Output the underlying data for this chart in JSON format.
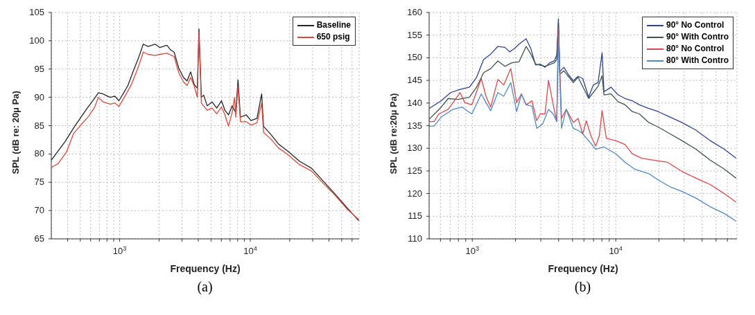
{
  "chart_data": [
    {
      "type": "line",
      "xlabel": "Frequency (Hz)",
      "ylabel": "SPL (dB re: 20μ Pa)",
      "log": "x",
      "grid": true,
      "legend": "top right",
      "marker": "none",
      "line_style": "solid",
      "annotations": [
        "(a)"
      ],
      "xlim": [
        300,
        68000
      ],
      "ylim": [
        65,
        105
      ],
      "yticks": [
        65,
        70,
        75,
        80,
        85,
        90,
        95,
        100,
        105
      ],
      "xticks": [
        {
          "value": 400,
          "label": null
        },
        {
          "value": 500,
          "label": null
        },
        {
          "value": 600,
          "label": null
        },
        {
          "value": 700,
          "label": null
        },
        {
          "value": 800,
          "label": null
        },
        {
          "value": 900,
          "label": null
        },
        {
          "value": 1000,
          "label": "10$^{3}$"
        },
        {
          "value": 2000,
          "label": null
        },
        {
          "value": 3000,
          "label": null
        },
        {
          "value": 4000,
          "label": null
        },
        {
          "value": 5000,
          "label": null
        },
        {
          "value": 6000,
          "label": null
        },
        {
          "value": 7000,
          "label": null
        },
        {
          "value": 8000,
          "label": null
        },
        {
          "value": 9000,
          "label": null
        },
        {
          "value": 10000,
          "label": "10$^{4}$"
        },
        {
          "value": 20000,
          "label": null
        },
        {
          "value": 30000,
          "label": null
        },
        {
          "value": 40000,
          "label": null
        },
        {
          "value": 50000,
          "label": null
        },
        {
          "value": 60000,
          "label": null
        }
      ],
      "series": [
        {
          "name": "Baseline",
          "color": "#222222",
          "x": [
            300,
            383,
            453,
            557,
            632,
            687,
            747,
            778,
            847,
            920,
            988,
            1087,
            1157,
            1284,
            1396,
            1517,
            1649,
            1870,
            2032,
            2302,
            2449,
            2611,
            2839,
            3085,
            3283,
            3495,
            3721,
            3929,
            4046,
            4219,
            4397,
            4677,
            5091,
            5534,
            6015,
            6398,
            6809,
            7255,
            7730,
            8054,
            8397,
            9311,
            10120,
            11250,
            12210,
            12620,
            14420,
            16370,
            19330,
            23830,
            29330,
            36120,
            44540,
            54820,
            67640
          ],
          "values": [
            78.9,
            82.2,
            84.9,
            87.9,
            89.6,
            90.8,
            90.6,
            90.4,
            90.0,
            90.2,
            89.4,
            91.0,
            92.1,
            94.9,
            97.0,
            99.4,
            99.0,
            99.4,
            98.8,
            99.2,
            98.4,
            98.0,
            95.1,
            93.5,
            92.9,
            94.5,
            92.3,
            91.6,
            102.1,
            90.0,
            90.4,
            88.5,
            89.2,
            88.1,
            89.4,
            87.7,
            86.9,
            88.5,
            87.3,
            93.1,
            86.5,
            86.9,
            85.9,
            86.3,
            90.6,
            84.9,
            83.4,
            81.8,
            80.5,
            78.7,
            77.5,
            75.2,
            72.9,
            70.5,
            68.2
          ]
        },
        {
          "name": "650 psig",
          "color": "#d9483b",
          "x": [
            300,
            338,
            391,
            444,
            513,
            581,
            645,
            687,
            747,
            847,
            920,
            988,
            1110,
            1232,
            1396,
            1517,
            1649,
            1870,
            2032,
            2302,
            2611,
            2839,
            3085,
            3283,
            3495,
            3721,
            3929,
            4046,
            4219,
            4677,
            5091,
            5534,
            6015,
            6398,
            6809,
            7255,
            7570,
            7730,
            8054,
            8397,
            9311,
            10120,
            11250,
            12210,
            12620,
            14420,
            16370,
            19330,
            23830,
            29330,
            36120,
            44540,
            54820,
            67640
          ],
          "values": [
            77.6,
            78.3,
            80.3,
            83.6,
            85.3,
            86.7,
            88.3,
            90.0,
            89.2,
            88.8,
            89.0,
            88.4,
            90.4,
            92.3,
            95.5,
            98.0,
            97.6,
            97.4,
            97.6,
            97.8,
            97.2,
            94.3,
            92.7,
            92.1,
            93.5,
            92.0,
            90.0,
            101.5,
            89.0,
            87.7,
            88.1,
            87.1,
            88.3,
            86.9,
            84.9,
            87.3,
            90.0,
            86.5,
            92.0,
            85.7,
            85.7,
            85.1,
            85.5,
            89.0,
            83.8,
            82.6,
            81.1,
            79.9,
            78.1,
            77.0,
            74.8,
            72.7,
            70.3,
            68.4
          ]
        }
      ]
    },
    {
      "type": "line",
      "xlabel": "Frequency (Hz)",
      "ylabel": "SPL (dB re:20μ Pa)",
      "log": "x",
      "grid": true,
      "legend": "top right",
      "marker": "none",
      "line_style": "solid",
      "annotations": [
        "(b)"
      ],
      "xlim": [
        500,
        70000
      ],
      "ylim": [
        110,
        160
      ],
      "yticks": [
        110,
        115,
        120,
        125,
        130,
        135,
        140,
        145,
        150,
        155,
        160
      ],
      "xticks": [
        {
          "value": 600,
          "label": null
        },
        {
          "value": 700,
          "label": null
        },
        {
          "value": 800,
          "label": null
        },
        {
          "value": 900,
          "label": null
        },
        {
          "value": 1000,
          "label": "10$^{3}$"
        },
        {
          "value": 2000,
          "label": null
        },
        {
          "value": 3000,
          "label": null
        },
        {
          "value": 4000,
          "label": null
        },
        {
          "value": 5000,
          "label": null
        },
        {
          "value": 6000,
          "label": null
        },
        {
          "value": 7000,
          "label": null
        },
        {
          "value": 8000,
          "label": null
        },
        {
          "value": 9000,
          "label": null
        },
        {
          "value": 10000,
          "label": "10$^{4}$"
        },
        {
          "value": 20000,
          "label": null
        },
        {
          "value": 30000,
          "label": null
        },
        {
          "value": 40000,
          "label": null
        },
        {
          "value": 50000,
          "label": null
        },
        {
          "value": 60000,
          "label": null
        }
      ],
      "series": [
        {
          "name": "90° No Control",
          "color": "#2e3f8f",
          "x": [
            500,
            607,
            706,
            821,
            955,
            1071,
            1199,
            1343,
            1506,
            1687,
            1819,
            1963,
            2117,
            2372,
            2559,
            2761,
            2978,
            3213,
            3461,
            3733,
            3879,
            3982,
            4073,
            4349,
            4691,
            5061,
            5459,
            5889,
            6473,
            6980,
            7528,
            8031,
            8279,
            9268,
            10380,
            11630,
            13030,
            14600,
            16980,
            19770,
            23890,
            28890,
            36240,
            45490,
            57100,
            69000
          ],
          "values": [
            138.8,
            140.5,
            142.3,
            143.0,
            143.5,
            145.7,
            149.6,
            150.8,
            152.5,
            152.3,
            151.3,
            152.0,
            153.0,
            154.2,
            152.0,
            148.4,
            148.6,
            147.9,
            148.9,
            149.3,
            150.6,
            158.6,
            146.9,
            147.9,
            146.2,
            144.9,
            145.9,
            145.4,
            141.3,
            144.0,
            144.5,
            151.1,
            142.5,
            143.5,
            141.8,
            141.0,
            140.5,
            139.6,
            138.8,
            138.1,
            136.9,
            135.7,
            134.0,
            131.7,
            129.8,
            127.8
          ]
        },
        {
          "name": "90° With Contro",
          "color": "#3d5248",
          "x": [
            500,
            607,
            679,
            791,
            955,
            1071,
            1199,
            1343,
            1506,
            1687,
            1888,
            2117,
            2372,
            2559,
            2761,
            3213,
            3733,
            3879,
            3982,
            4073,
            4349,
            5061,
            5459,
            6473,
            7528,
            8031,
            8279,
            9268,
            10380,
            11630,
            13030,
            14600,
            16980,
            19770,
            23890,
            28890,
            36240,
            45490,
            57100,
            69000
          ],
          "values": [
            136.4,
            139.1,
            141.0,
            140.8,
            141.3,
            143.5,
            146.7,
            147.6,
            149.3,
            148.1,
            148.9,
            149.1,
            152.5,
            150.8,
            148.6,
            148.1,
            148.9,
            149.6,
            157.7,
            146.4,
            147.1,
            144.5,
            145.7,
            141.0,
            143.7,
            146.0,
            141.8,
            142.0,
            140.3,
            139.6,
            138.1,
            137.6,
            135.7,
            134.7,
            133.2,
            131.7,
            129.8,
            127.4,
            125.4,
            123.4
          ]
        },
        {
          "name": "80° No Control",
          "color": "#d9474a",
          "x": [
            500,
            541,
            584,
            679,
            821,
            886,
            992,
            1155,
            1245,
            1343,
            1506,
            1655,
            1854,
            2037,
            2199,
            2372,
            2606,
            2813,
            2978,
            3213,
            3397,
            3664,
            3879,
            3982,
            4188,
            4518,
            5061,
            5459,
            5889,
            6226,
            6719,
            7245,
            7673,
            8031,
            8596,
            9992,
            11630,
            13030,
            15170,
            19040,
            23000,
            28890,
            36240,
            45490,
            57100,
            69000
          ],
          "values": [
            135.9,
            135.9,
            137.6,
            138.6,
            142.3,
            140.1,
            139.6,
            145.4,
            141.5,
            139.1,
            145.2,
            144.0,
            147.6,
            140.1,
            142.0,
            139.6,
            140.5,
            136.1,
            137.6,
            137.6,
            145.0,
            139.6,
            135.9,
            156.7,
            136.6,
            138.6,
            135.7,
            136.6,
            133.2,
            136.1,
            132.7,
            130.5,
            132.7,
            138.3,
            132.2,
            131.7,
            130.8,
            128.8,
            127.8,
            127.3,
            126.9,
            124.9,
            123.4,
            122.0,
            120.0,
            118.1
          ]
        },
        {
          "name": "80° With Contro",
          "color": "#4f86c6",
          "x": [
            500,
            541,
            607,
            733,
            853,
            920,
            992,
            1155,
            1245,
            1343,
            1506,
            1655,
            1854,
            2037,
            2199,
            2372,
            2606,
            2813,
            3093,
            3397,
            3664,
            3879,
            3982,
            4188,
            4518,
            5061,
            5666,
            6350,
            7245,
            8279,
            9992,
            11630,
            13540,
            16980,
            19770,
            23890,
            28890,
            36240,
            45490,
            57100,
            69000
          ],
          "values": [
            134.9,
            134.9,
            136.9,
            138.6,
            139.1,
            138.3,
            137.6,
            142.0,
            140.1,
            138.3,
            142.3,
            141.5,
            144.5,
            138.1,
            142.0,
            139.6,
            139.3,
            134.4,
            135.4,
            138.6,
            137.6,
            135.9,
            155.2,
            134.4,
            138.6,
            134.4,
            133.7,
            132.0,
            129.8,
            130.3,
            128.8,
            126.9,
            125.4,
            124.4,
            123.0,
            121.5,
            120.5,
            119.0,
            117.1,
            115.6,
            113.9
          ]
        }
      ]
    }
  ]
}
